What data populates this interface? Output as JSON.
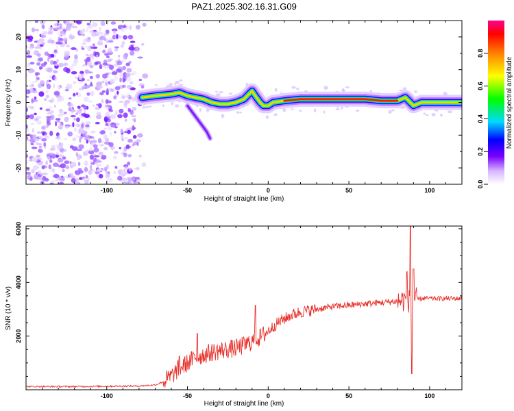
{
  "chart_data": [
    {
      "type": "heatmap",
      "title": "PAZ1.2025.302.16.31.G09",
      "xlabel": "Height of straight line (km)",
      "ylabel": "Frequency (Hz)",
      "xlim": [
        -150,
        120
      ],
      "ylim": [
        -25,
        25
      ],
      "x_ticks": [
        -100,
        -50,
        0,
        50,
        100
      ],
      "y_ticks": [
        -20,
        -10,
        0,
        10,
        20
      ],
      "colorbar": {
        "label": "Normalized spectral amplitude",
        "range": [
          0,
          1
        ],
        "ticks": [
          "0.0",
          "0.2",
          "0.4",
          "0.6",
          "0.8"
        ]
      },
      "main_trace": {
        "x": [
          -78,
          -70,
          -60,
          -55,
          -50,
          -45,
          -40,
          -35,
          -30,
          -25,
          -20,
          -15,
          -12,
          -10,
          -8,
          -5,
          -3,
          0,
          3,
          10,
          20,
          30,
          40,
          50,
          60,
          70,
          80,
          85,
          88,
          90,
          95,
          100,
          110,
          120
        ],
        "y": [
          1.5,
          2,
          2.5,
          3,
          2,
          1.5,
          1,
          0,
          -0.5,
          -0.5,
          0,
          1,
          2.5,
          3.5,
          2,
          0,
          -1,
          -1,
          0,
          0.5,
          1,
          1,
          1,
          1,
          1,
          0.5,
          0.5,
          1.5,
          0,
          -1,
          0,
          0,
          0,
          0
        ]
      },
      "secondary_branch": {
        "x": [
          -50,
          -47,
          -44,
          -41,
          -38,
          -36
        ],
        "y": [
          -1,
          -3,
          -5,
          -7,
          -9,
          -11
        ]
      }
    },
    {
      "type": "line",
      "xlabel": "Height of straight line (km)",
      "ylabel": "SNR (10 * v/v)",
      "xlim": [
        -150,
        120
      ],
      "ylim": [
        0,
        6100
      ],
      "x_ticks": [
        -100,
        -50,
        0,
        50,
        100
      ],
      "y_ticks": [
        2000,
        4000,
        6000
      ],
      "color": "#e8302a",
      "baseline": {
        "x": [
          -150,
          -120,
          -100,
          -80,
          -70,
          -65,
          -60,
          -55,
          -50,
          -45,
          -40,
          -35,
          -30,
          -25,
          -20,
          -15,
          -10,
          -5,
          0,
          5,
          10,
          15,
          20,
          30,
          40,
          50,
          60,
          70,
          80,
          85,
          88,
          90,
          95,
          100,
          110,
          120
        ],
        "y": [
          120,
          120,
          130,
          140,
          180,
          300,
          500,
          800,
          1000,
          1200,
          1300,
          1400,
          1450,
          1500,
          1550,
          1650,
          1800,
          1950,
          2200,
          2450,
          2650,
          2800,
          2900,
          3000,
          3100,
          3150,
          3200,
          3250,
          3300,
          3350,
          3300,
          3350,
          3400,
          3400,
          3400,
          3400
        ]
      },
      "spikes": {
        "x": [
          -55,
          -44,
          -8,
          86,
          88,
          89,
          90
        ],
        "y": [
          1250,
          2100,
          3150,
          4400,
          6100,
          600,
          4500
        ]
      }
    }
  ]
}
